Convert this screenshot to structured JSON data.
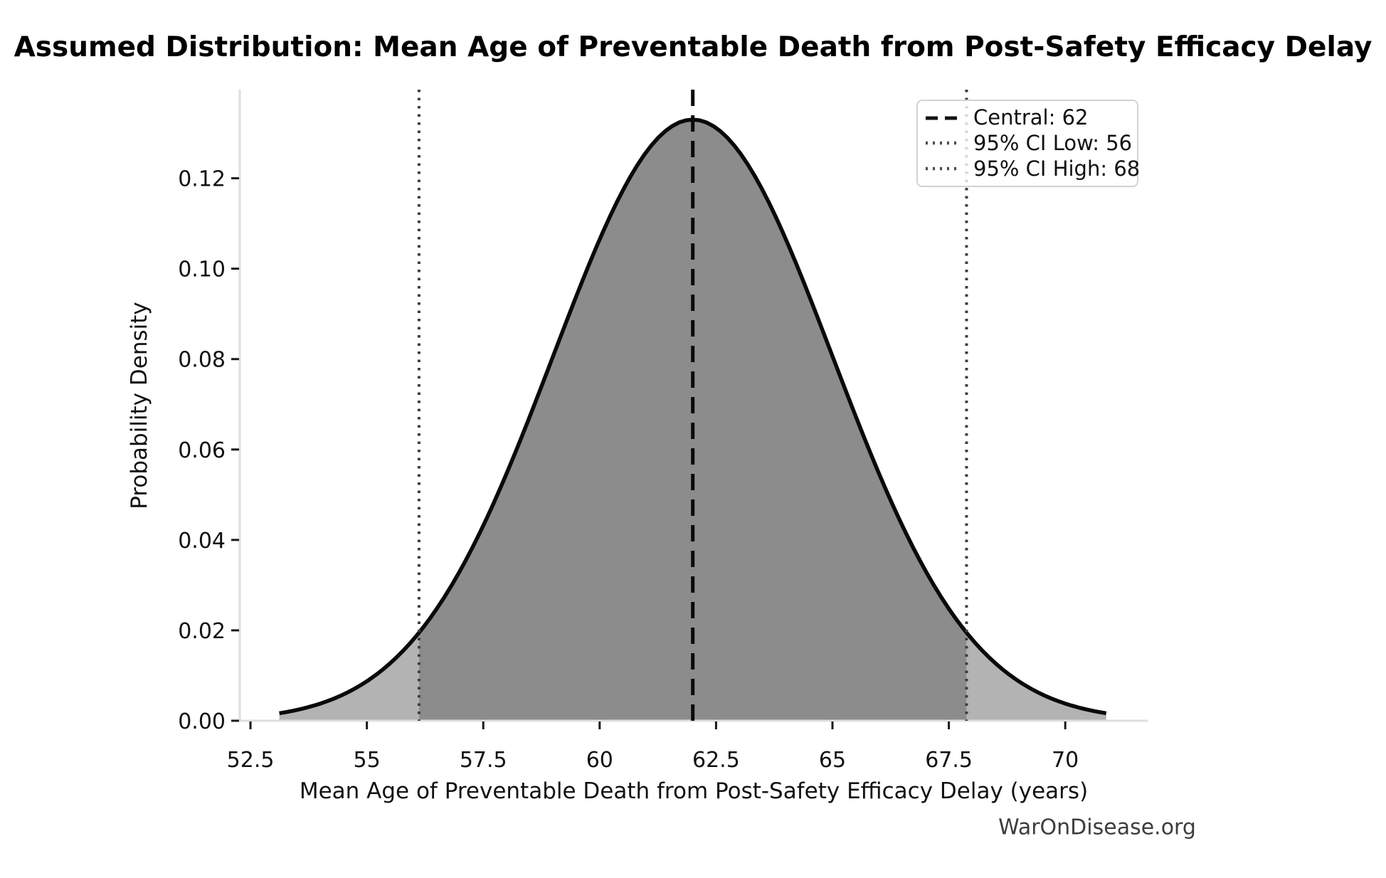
{
  "title": "Assumed Distribution: Mean Age of Preventable Death from Post-Safety Efficacy Delay",
  "watermark": "WarOnDisease.org",
  "chart_data": {
    "type": "area",
    "title": "Assumed Distribution: Mean Age of Preventable Death from Post-Safety Efficacy Delay",
    "xlabel": "Mean Age of Preventable Death from Post-Safety Efficacy Delay (years)",
    "ylabel": "Probability Density",
    "distribution": {
      "family": "normal",
      "mean": 62,
      "sd": 3,
      "peak_density": 0.133,
      "curve_x_min": 53.12,
      "curve_x_max": 70.88
    },
    "central_line_x": 62,
    "ci_low_line_x": 56.12,
    "ci_high_line_x": 67.88,
    "xlim": [
      52.27,
      71.77
    ],
    "ylim": [
      0,
      0.1396
    ],
    "x_ticks": [
      52.5,
      55,
      57.5,
      60,
      62.5,
      65,
      67.5,
      70
    ],
    "x_tick_labels": [
      "52.5",
      "55",
      "57.5",
      "60",
      "62.5",
      "65",
      "67.5",
      "70"
    ],
    "y_ticks": [
      0,
      0.02,
      0.04,
      0.06,
      0.08,
      0.1,
      0.12
    ],
    "y_tick_labels": [
      "0.00",
      "0.02",
      "0.04",
      "0.06",
      "0.08",
      "0.10",
      "0.12"
    ],
    "grid": false,
    "legend": {
      "position": "upper right",
      "items": [
        {
          "label": "Central: 62",
          "line_style": "dashed",
          "color": "#111111"
        },
        {
          "label": "95% CI Low: 56",
          "line_style": "dotted",
          "color": "#4a4a4a"
        },
        {
          "label": "95% CI High: 68",
          "line_style": "dotted",
          "color": "#4a4a4a"
        }
      ]
    },
    "colors": {
      "curve": "#0a0a0a",
      "fill_center": "#8c8c8c",
      "fill_tail": "#b3b3b3",
      "central_line": "#0a0a0a",
      "ci_line": "#3c3c3c",
      "spine": "#dedede",
      "tick": "#1a1a1a",
      "tick_label": "#111111"
    }
  }
}
